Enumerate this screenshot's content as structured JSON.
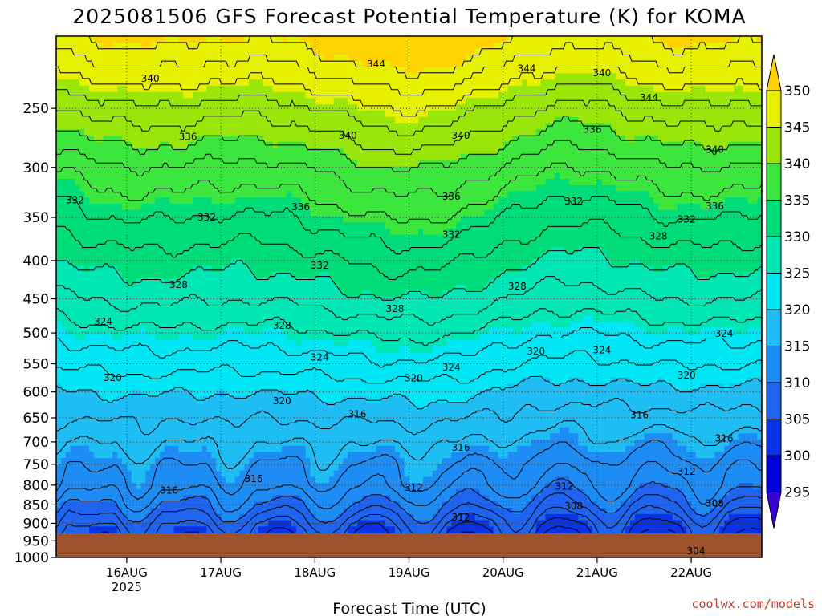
{
  "chart_data": {
    "type": "filled-contour",
    "title": "2025081506 GFS Forecast Potential Temperature (K) for KOMA",
    "xlabel": "Forecast Time (UTC)",
    "ylabel": "",
    "source": "coolwx.com/models",
    "y_axis": {
      "units": "hPa",
      "inverted": true,
      "scale": "log",
      "range": [
        1000,
        200
      ],
      "ticks": [
        250,
        300,
        350,
        400,
        450,
        500,
        550,
        600,
        650,
        700,
        750,
        800,
        850,
        900,
        950,
        1000
      ]
    },
    "x_axis": {
      "range": [
        "2025-08-15T06",
        "2025-08-22T18"
      ],
      "ticks": [
        {
          "label": "16AUG",
          "sub": "2025",
          "time": "2025-08-16T00"
        },
        {
          "label": "17AUG",
          "sub": "",
          "time": "2025-08-17T00"
        },
        {
          "label": "18AUG",
          "sub": "",
          "time": "2025-08-18T00"
        },
        {
          "label": "19AUG",
          "sub": "",
          "time": "2025-08-19T00"
        },
        {
          "label": "20AUG",
          "sub": "",
          "time": "2025-08-20T00"
        },
        {
          "label": "21AUG",
          "sub": "",
          "time": "2025-08-21T00"
        },
        {
          "label": "22AUG",
          "sub": "",
          "time": "2025-08-22T00"
        }
      ]
    },
    "grid": true,
    "colorbar": {
      "placement": "right",
      "labels": [
        "295",
        "300",
        "305",
        "310",
        "315",
        "320",
        "325",
        "330",
        "335",
        "340",
        "345",
        "350"
      ],
      "levels": [
        {
          "value": 290,
          "color": "#3a00d8"
        },
        {
          "value": 295,
          "color": "#0000dc"
        },
        {
          "value": 300,
          "color": "#0a32e6"
        },
        {
          "value": 305,
          "color": "#1e64f0"
        },
        {
          "value": 310,
          "color": "#1e8cf5"
        },
        {
          "value": 315,
          "color": "#1ebef5"
        },
        {
          "value": 320,
          "color": "#00e6f5"
        },
        {
          "value": 325,
          "color": "#00e6b4"
        },
        {
          "value": 330,
          "color": "#00dc78"
        },
        {
          "value": 335,
          "color": "#3ce63c"
        },
        {
          "value": 340,
          "color": "#9be60a"
        },
        {
          "value": 345,
          "color": "#e6f000"
        },
        {
          "value": 350,
          "color": "#ffd200"
        }
      ]
    },
    "ground_color": "#a0522d",
    "contour_labels": [
      {
        "text": "340",
        "t": 1.0,
        "p": 228
      },
      {
        "text": "344",
        "t": 3.4,
        "p": 218
      },
      {
        "text": "344",
        "t": 5.0,
        "p": 221
      },
      {
        "text": "340",
        "t": 5.8,
        "p": 224
      },
      {
        "text": "344",
        "t": 6.3,
        "p": 242
      },
      {
        "text": "336",
        "t": 1.4,
        "p": 273
      },
      {
        "text": "340",
        "t": 3.1,
        "p": 272
      },
      {
        "text": "340",
        "t": 4.3,
        "p": 272
      },
      {
        "text": "336",
        "t": 5.7,
        "p": 267
      },
      {
        "text": "340",
        "t": 7.0,
        "p": 284
      },
      {
        "text": "332",
        "t": 0.2,
        "p": 332
      },
      {
        "text": "332",
        "t": 1.6,
        "p": 350
      },
      {
        "text": "336",
        "t": 2.6,
        "p": 339
      },
      {
        "text": "336",
        "t": 4.2,
        "p": 328
      },
      {
        "text": "332",
        "t": 5.5,
        "p": 333
      },
      {
        "text": "336",
        "t": 7.0,
        "p": 338
      },
      {
        "text": "332",
        "t": 4.2,
        "p": 369
      },
      {
        "text": "332",
        "t": 6.7,
        "p": 352
      },
      {
        "text": "328",
        "t": 6.4,
        "p": 371
      },
      {
        "text": "332",
        "t": 2.8,
        "p": 406
      },
      {
        "text": "328",
        "t": 1.3,
        "p": 431
      },
      {
        "text": "328",
        "t": 4.9,
        "p": 433
      },
      {
        "text": "328",
        "t": 3.6,
        "p": 464
      },
      {
        "text": "324",
        "t": 0.5,
        "p": 483
      },
      {
        "text": "328",
        "t": 2.4,
        "p": 489
      },
      {
        "text": "324",
        "t": 7.1,
        "p": 501
      },
      {
        "text": "324",
        "t": 2.8,
        "p": 539
      },
      {
        "text": "320",
        "t": 5.1,
        "p": 529
      },
      {
        "text": "324",
        "t": 5.8,
        "p": 527
      },
      {
        "text": "324",
        "t": 4.2,
        "p": 556
      },
      {
        "text": "320",
        "t": 0.6,
        "p": 574
      },
      {
        "text": "320",
        "t": 3.8,
        "p": 575
      },
      {
        "text": "320",
        "t": 6.7,
        "p": 570
      },
      {
        "text": "320",
        "t": 2.4,
        "p": 617
      },
      {
        "text": "316",
        "t": 3.2,
        "p": 643
      },
      {
        "text": "316",
        "t": 6.2,
        "p": 644
      },
      {
        "text": "316",
        "t": 7.1,
        "p": 692
      },
      {
        "text": "316",
        "t": 4.3,
        "p": 712
      },
      {
        "text": "312",
        "t": 6.7,
        "p": 767
      },
      {
        "text": "316",
        "t": 2.1,
        "p": 785
      },
      {
        "text": "312",
        "t": 3.8,
        "p": 806
      },
      {
        "text": "312",
        "t": 5.4,
        "p": 803
      },
      {
        "text": "316",
        "t": 1.2,
        "p": 813
      },
      {
        "text": "308",
        "t": 5.5,
        "p": 853
      },
      {
        "text": "308",
        "t": 7.0,
        "p": 846
      },
      {
        "text": "312",
        "t": 4.3,
        "p": 884
      },
      {
        "text": "304",
        "t": 6.8,
        "p": 980
      }
    ]
  }
}
